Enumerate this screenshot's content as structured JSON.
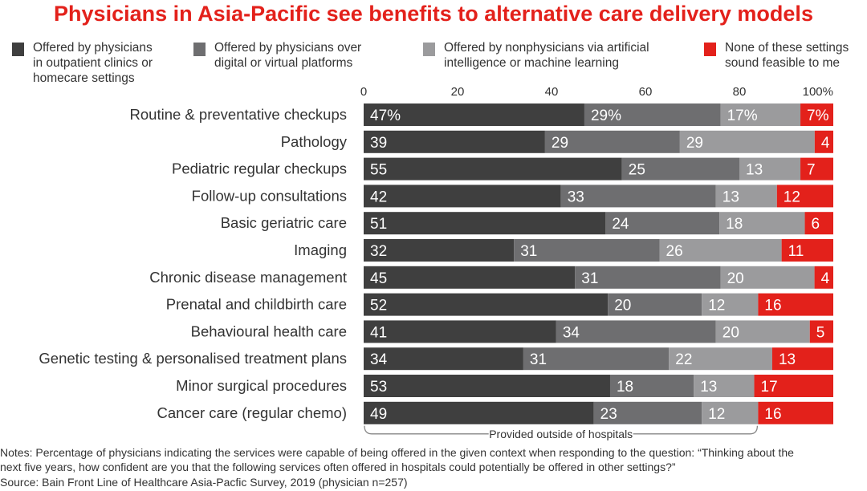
{
  "chart_data": {
    "type": "bar",
    "orientation": "horizontal",
    "stacked": true,
    "title": "Physicians in Asia-Pacific see benefits to alternative care delivery models",
    "categories": [
      "Routine & preventative checkups",
      "Pathology",
      "Pediatric regular checkups",
      "Follow-up consultations",
      "Basic geriatric care",
      "Imaging",
      "Chronic disease management",
      "Prenatal and childbirth care",
      "Behavioural health care",
      "Genetic testing & personalised treatment plans",
      "Minor surgical procedures",
      "Cancer care (regular chemo)"
    ],
    "series": [
      {
        "name": "Offered by physicians in outpatient clinics or homecare settings",
        "color": "#3f3f3f",
        "values": [
          47,
          39,
          55,
          42,
          51,
          32,
          45,
          52,
          41,
          34,
          53,
          49
        ]
      },
      {
        "name": "Offered by physicians over digital or virtual platforms",
        "color": "#6e6e70",
        "values": [
          29,
          29,
          25,
          33,
          24,
          31,
          31,
          20,
          34,
          31,
          18,
          23
        ]
      },
      {
        "name": "Offered by nonphysicians via artificial intelligence or machine learning",
        "color": "#9b9b9d",
        "values": [
          17,
          29,
          13,
          13,
          18,
          26,
          20,
          12,
          20,
          22,
          13,
          12
        ]
      },
      {
        "name": "None of these settings sound feasible to me",
        "color": "#e3211b",
        "values": [
          7,
          4,
          7,
          12,
          6,
          11,
          4,
          16,
          5,
          13,
          17,
          16
        ]
      }
    ],
    "legend_lines": [
      [
        "Offered by physicians",
        "in outpatient clinics or",
        "homecare settings"
      ],
      [
        "Offered by physicians over",
        "digital or virtual platforms"
      ],
      [
        "Offered by nonphysicians via artificial",
        "intelligence or machine learning"
      ],
      [
        "None of these settings",
        "sound feasible to me"
      ]
    ],
    "xticks": [
      "0",
      "20",
      "40",
      "60",
      "80",
      "100%"
    ],
    "xlim": [
      0,
      100
    ],
    "first_row_percent_labels": true,
    "annotation": "Provided outside of hospitals",
    "legend": "top",
    "grid": false
  },
  "notes": [
    "Notes: Percentage of physicians indicating the services were capable of being offered in the given context when responding to the question: “Thinking about the",
    "next five years, how confident are you that the following services often offered in hospitals could potentially be offered in other settings?”",
    "Source: Bain Front Line of Healthcare Asia-Pacfic Survey, 2019 (physician n=257)"
  ]
}
